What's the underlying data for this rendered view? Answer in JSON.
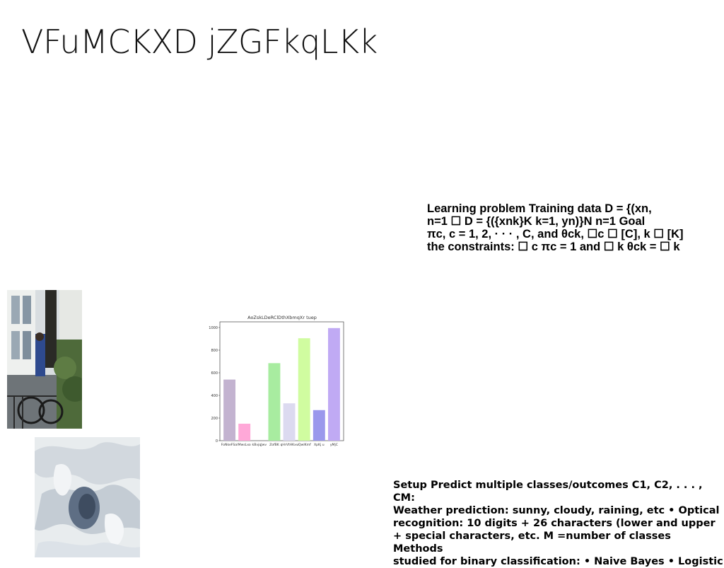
{
  "title": "VFuMCKXD jZGFkqLKk",
  "paragraph1": "Learning problem Training data D = {(xn,\nn=1 ☐ D = {({xnk}K k=1, yn)}N n=1 Goal\nπc, c = 1, 2, · · · , C, and θck, ☐c ☐ [C], k ☐ [K]\nthe constraints: ☐ c πc = 1 and ☐ k θck = ☐ k",
  "paragraph2": "Setup Predict multiple classes/outcomes C1, C2, . . . , CM:\nWeather prediction: sunny, cloudy, raining, etc • Optical\nrecognition: 10 digits + 26 characters (lower and upper\n+ special characters, etc. M =number of classes Methods\nstudied for binary classification: • Naive Bayes • Logistic",
  "chart_data": {
    "type": "bar",
    "title": "AoZskLDeRClDthXbmqXr tuep",
    "categories": [
      "FoNkeFSal",
      "MwsLxo",
      "kBvjqJwv",
      "ZofBK",
      "qHrVtHKxv",
      "iQwlKmf",
      "XpKj u",
      "yMjC"
    ],
    "values": [
      540,
      150,
      0,
      685,
      330,
      905,
      270,
      995
    ],
    "colors": [
      "#c3b3d0",
      "#ffa8d8",
      "#c0c0e8",
      "#a8eca0",
      "#dcdaf0",
      "#d0fca0",
      "#9a98ec",
      "#c0aaf4"
    ],
    "yticks": [
      0,
      200,
      400,
      600,
      800,
      1000
    ],
    "ylim": [
      0,
      1050
    ]
  }
}
